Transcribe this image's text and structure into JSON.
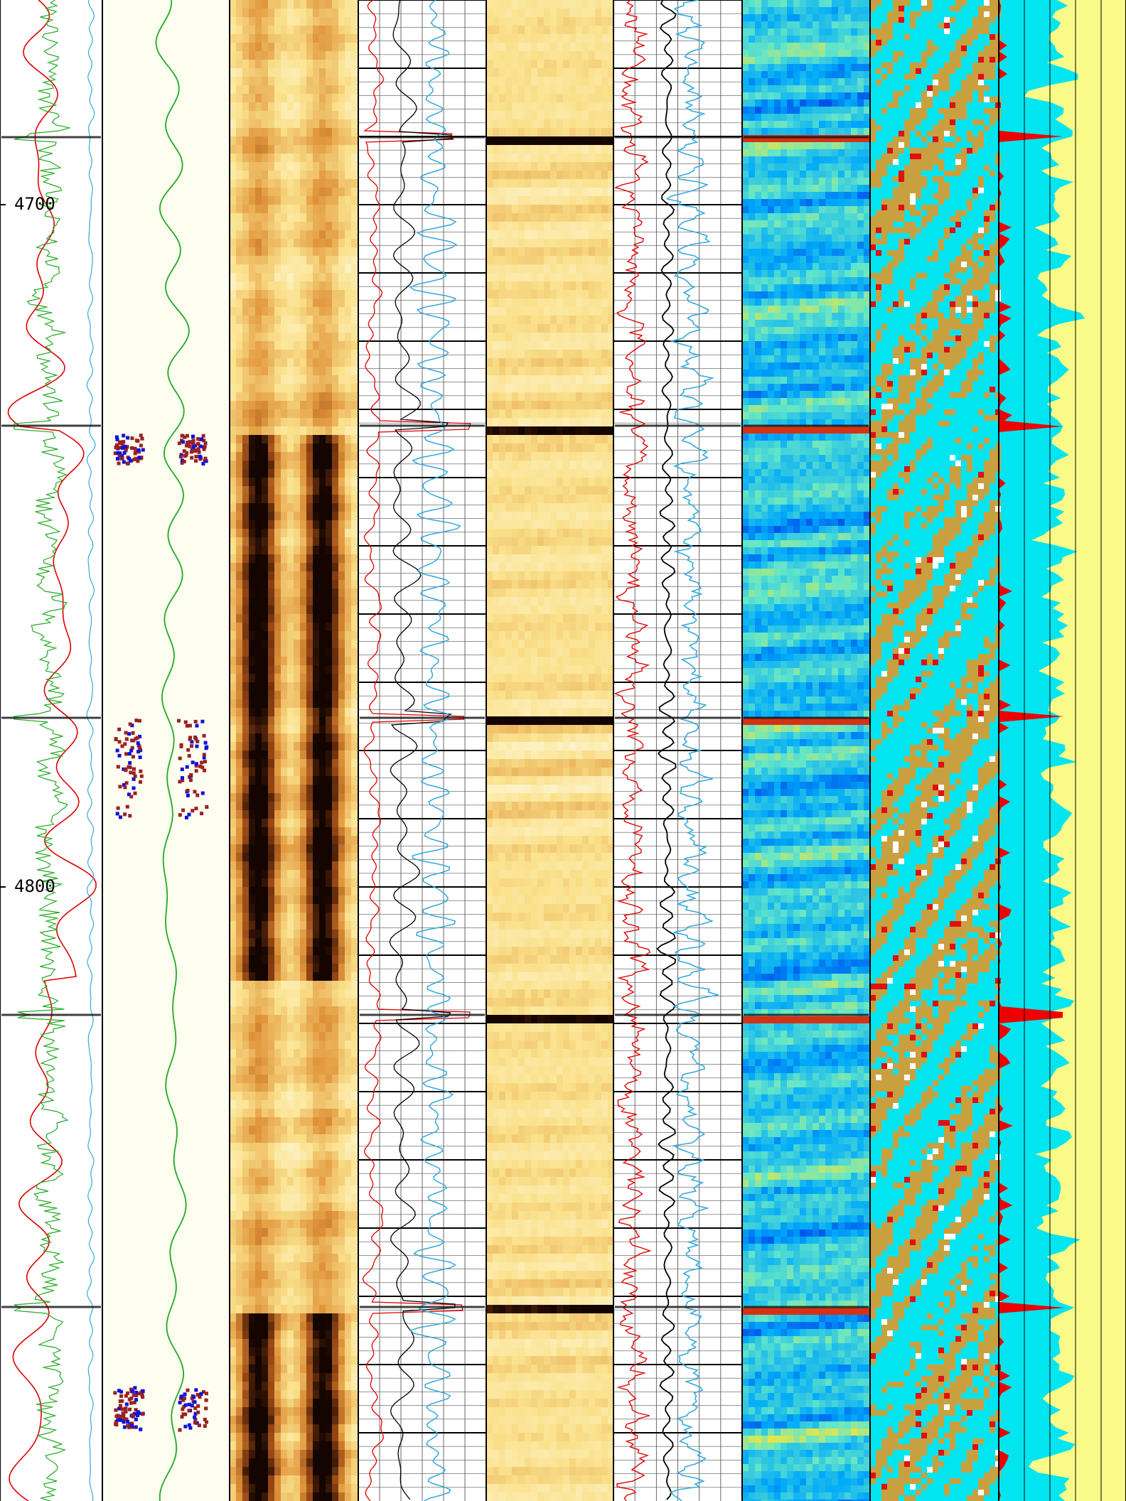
{
  "chart_data": {
    "type": "well-log",
    "ylim": [
      4670,
      4890
    ],
    "yticks": [
      4700,
      4800
    ]
  }
}
